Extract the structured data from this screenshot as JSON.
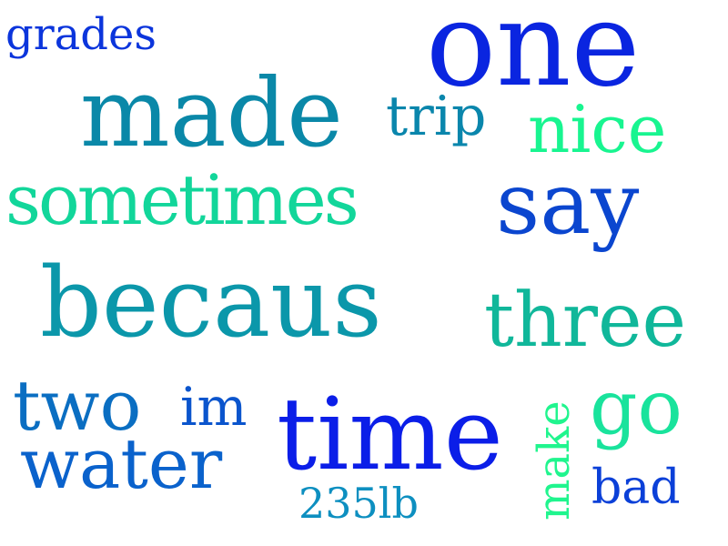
{
  "words": [
    {
      "text": "one",
      "color": "#0a25e0"
    },
    {
      "text": "made",
      "color": "#0a88a8"
    },
    {
      "text": "becaus",
      "color": "#0b97aa"
    },
    {
      "text": "time",
      "color": "#0b1ee8"
    },
    {
      "text": "sometimes",
      "color": "#12d69a"
    },
    {
      "text": "three",
      "color": "#10b79a"
    },
    {
      "text": "say",
      "color": "#0b46cf"
    },
    {
      "text": "water",
      "color": "#0a62cc"
    },
    {
      "text": "nice",
      "color": "#18f590"
    },
    {
      "text": "go",
      "color": "#19e39c"
    },
    {
      "text": "two",
      "color": "#0a6ec2"
    },
    {
      "text": "trip",
      "color": "#0a86ac"
    },
    {
      "text": "im",
      "color": "#0b55cd"
    },
    {
      "text": "make",
      "color": "#20f58e"
    },
    {
      "text": "bad",
      "color": "#0b40d8"
    },
    {
      "text": "grades",
      "color": "#0b35dc"
    },
    {
      "text": "235lb",
      "color": "#0d8fc0"
    }
  ]
}
